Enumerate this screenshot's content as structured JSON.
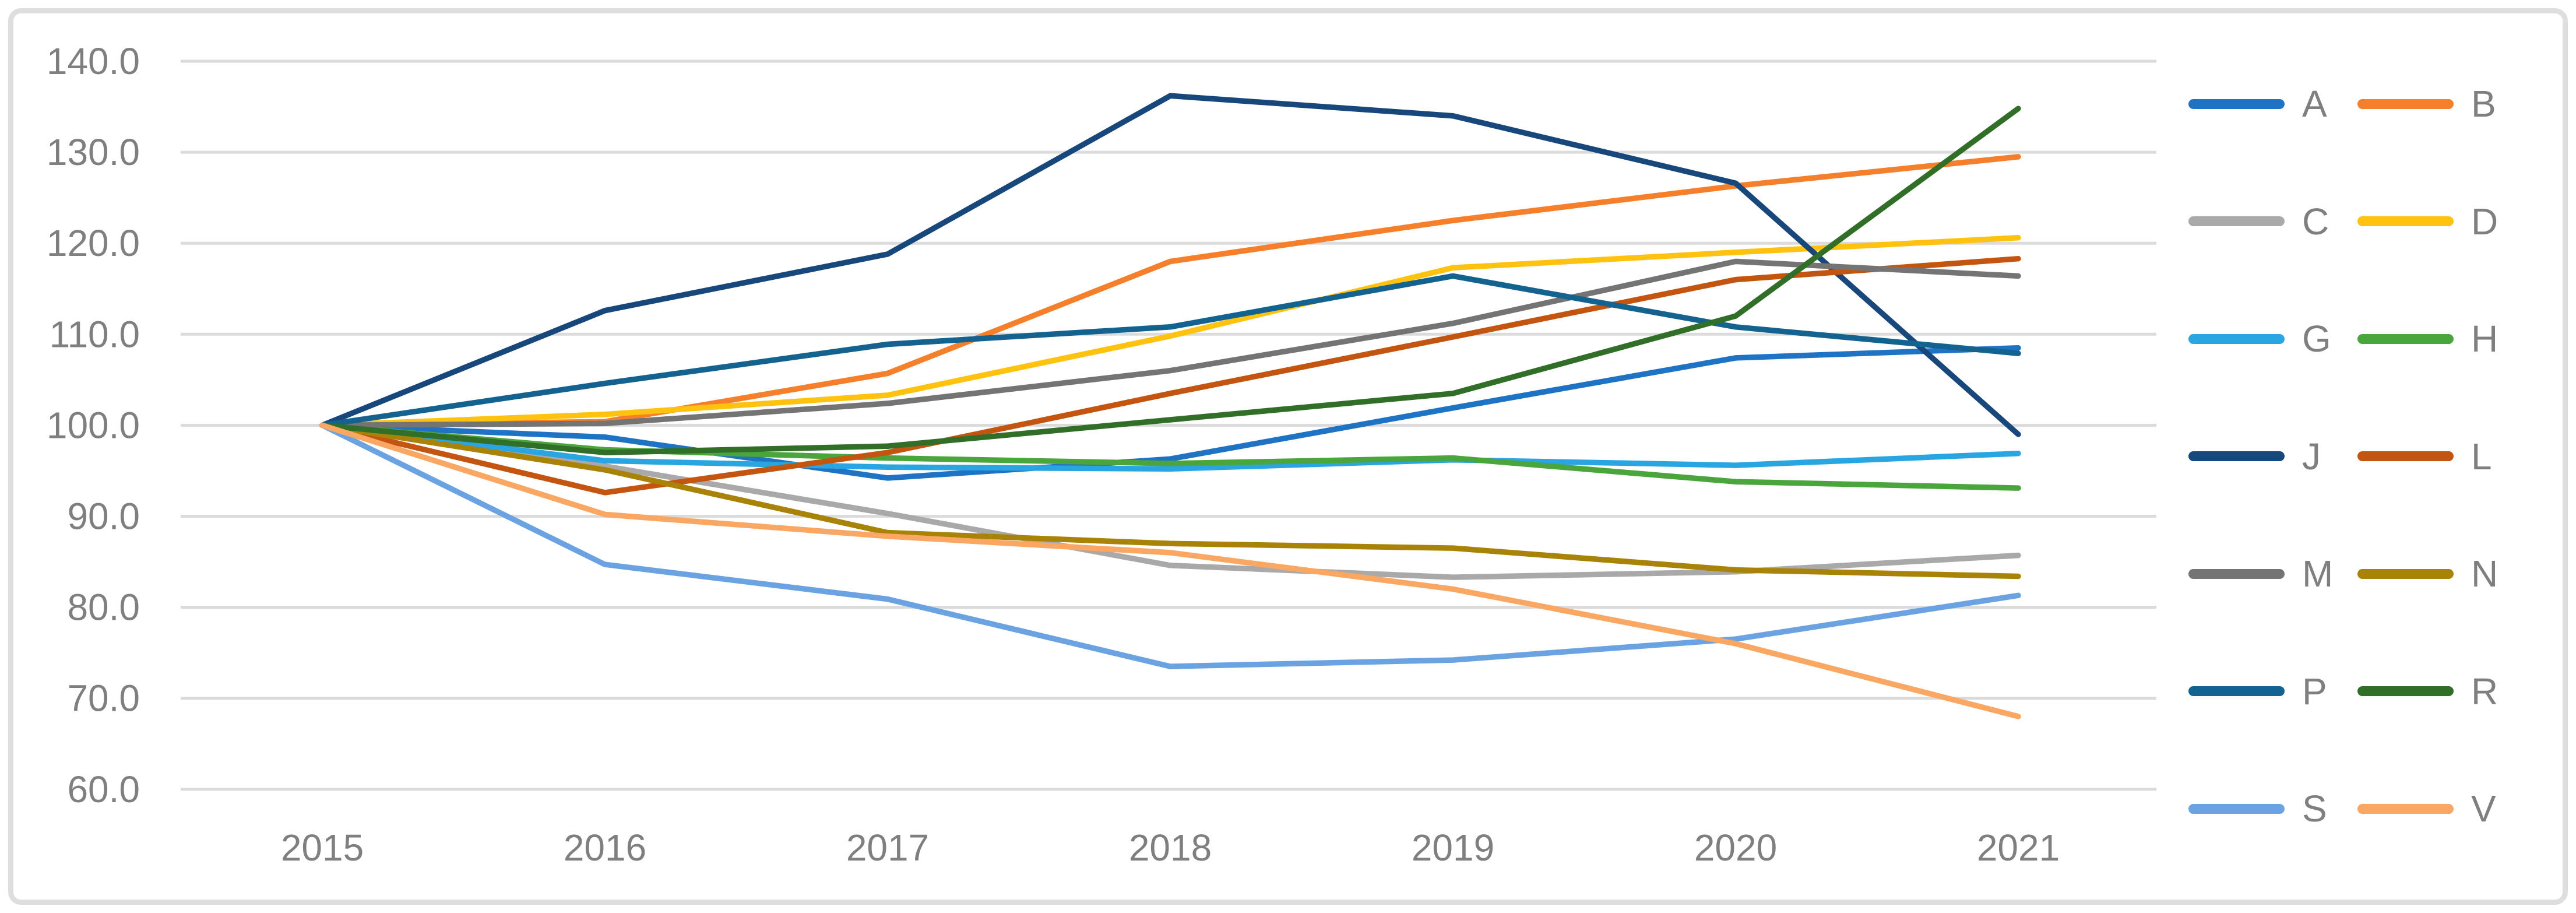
{
  "chart_data": {
    "type": "line",
    "title": "",
    "xlabel": "",
    "ylabel": "",
    "x": [
      2015,
      2016,
      2017,
      2018,
      2019,
      2020,
      2021
    ],
    "xticks": [
      "2015",
      "2016",
      "2017",
      "2018",
      "2019",
      "2020",
      "2021"
    ],
    "yticks": [
      "140.0",
      "130.0",
      "120.0",
      "110.0",
      "100.0",
      "90.0",
      "80.0",
      "70.0",
      "60.0"
    ],
    "ylim": [
      60,
      140
    ],
    "ytick_step": 10,
    "grid": true,
    "legend_position": "right",
    "series": [
      {
        "name": "A",
        "color": "#1F73C5",
        "values": [
          100,
          98.7,
          94.2,
          96.3,
          101.9,
          107.4,
          108.5
        ]
      },
      {
        "name": "B",
        "color": "#F57F2B",
        "values": [
          100,
          100.4,
          105.7,
          118.0,
          122.5,
          126.3,
          129.5
        ]
      },
      {
        "name": "C",
        "color": "#A9A9A9",
        "values": [
          100,
          95.5,
          90.3,
          84.6,
          83.3,
          83.9,
          85.7
        ]
      },
      {
        "name": "D",
        "color": "#FFC20E",
        "values": [
          100,
          101.2,
          103.3,
          109.8,
          117.3,
          119.0,
          120.6
        ]
      },
      {
        "name": "G",
        "color": "#29A5E2",
        "values": [
          100,
          96.1,
          95.4,
          95.2,
          96.2,
          95.6,
          96.9
        ]
      },
      {
        "name": "H",
        "color": "#4BA53D",
        "values": [
          100,
          97.3,
          96.4,
          95.8,
          96.4,
          93.8,
          93.1
        ]
      },
      {
        "name": "J",
        "color": "#17477B",
        "values": [
          100,
          112.6,
          118.8,
          136.2,
          134.0,
          126.6,
          99.0
        ]
      },
      {
        "name": "L",
        "color": "#C35511",
        "values": [
          100,
          92.6,
          97.0,
          103.5,
          109.7,
          116.0,
          118.3
        ]
      },
      {
        "name": "M",
        "color": "#747474",
        "values": [
          100,
          100.2,
          102.4,
          106.0,
          111.2,
          118.0,
          116.4
        ]
      },
      {
        "name": "N",
        "color": "#A98307",
        "values": [
          100,
          95.1,
          88.2,
          87.0,
          86.5,
          84.1,
          83.4
        ]
      },
      {
        "name": "P",
        "color": "#13628F",
        "values": [
          100,
          104.6,
          108.9,
          110.8,
          116.4,
          110.8,
          107.9
        ]
      },
      {
        "name": "R",
        "color": "#316F28",
        "values": [
          100,
          97.0,
          97.7,
          100.6,
          103.5,
          112.0,
          134.8
        ]
      },
      {
        "name": "S",
        "color": "#6BA3E2",
        "values": [
          100,
          84.7,
          80.9,
          73.5,
          74.2,
          76.5,
          81.3
        ]
      },
      {
        "name": "V",
        "color": "#FAA763",
        "values": [
          100,
          90.2,
          87.8,
          86.0,
          82.0,
          76.0,
          68.0
        ]
      }
    ],
    "colors": {
      "gridline": "#DBDBDB",
      "tick_label": "#7F7F7F",
      "frame_border": "#DEDEDE",
      "background": "#FFFFFF"
    }
  }
}
